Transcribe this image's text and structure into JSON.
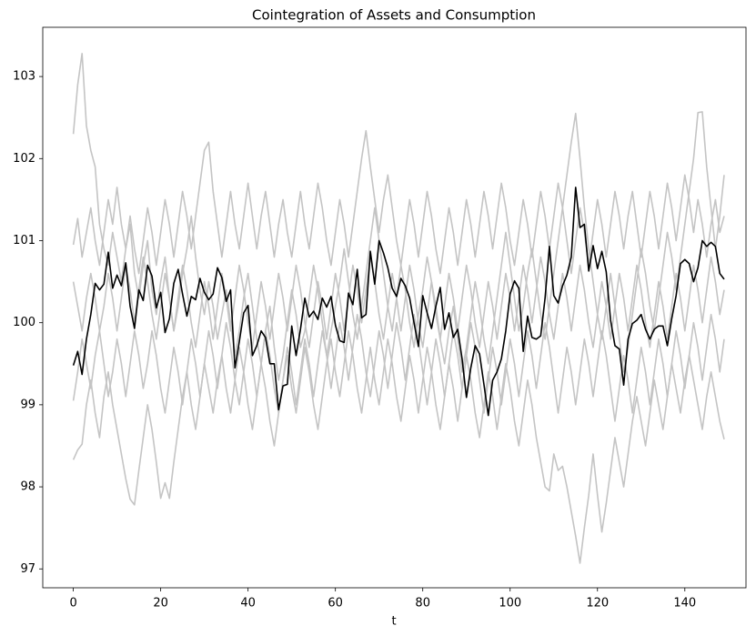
{
  "chart_data": {
    "type": "line",
    "title": "Cointegration of Assets and Consumption",
    "x_label": "t",
    "x": [
      0,
      1,
      2,
      3,
      4,
      5,
      6,
      7,
      8,
      9,
      10,
      11,
      12,
      13,
      14,
      15,
      16,
      17,
      18,
      19,
      20,
      21,
      22,
      23,
      24,
      25,
      26,
      27,
      28,
      29,
      30,
      31,
      32,
      33,
      34,
      35,
      36,
      37,
      38,
      39,
      40,
      41,
      42,
      43,
      44,
      45,
      46,
      47,
      48,
      49,
      50,
      51,
      52,
      53,
      54,
      55,
      56,
      57,
      58,
      59,
      60,
      61,
      62,
      63,
      64,
      65,
      66,
      67,
      68,
      69,
      70,
      71,
      72,
      73,
      74,
      75,
      76,
      77,
      78,
      79,
      80,
      81,
      82,
      83,
      84,
      85,
      86,
      87,
      88,
      89,
      90,
      91,
      92,
      93,
      94,
      95,
      96,
      97,
      98,
      99,
      100,
      101,
      102,
      103,
      104,
      105,
      106,
      107,
      108,
      109,
      110,
      111,
      112,
      113,
      114,
      115,
      116,
      117,
      118,
      119,
      120,
      121,
      122,
      123,
      124,
      125,
      126,
      127,
      128,
      129,
      130,
      131,
      132,
      133,
      134,
      135,
      136,
      137,
      138,
      139,
      140,
      141,
      142,
      143,
      144,
      145,
      146,
      147,
      148,
      149
    ],
    "xlim": [
      -7,
      154
    ],
    "ylim": [
      96.77,
      103.6
    ],
    "xticks": [
      0,
      20,
      40,
      60,
      80,
      100,
      120,
      140
    ],
    "yticks": [
      97,
      98,
      99,
      100,
      101,
      102,
      103
    ],
    "series": [
      {
        "color": "#c4c4c4",
        "values": [
          102.3,
          102.9,
          103.28,
          102.4,
          102.1,
          101.9,
          101.2,
          100.9,
          100.7,
          101.1,
          100.8,
          100.5,
          100.9,
          101.2,
          100.6,
          100.3,
          100.7,
          101.0,
          100.4,
          100.1,
          100.5,
          100.8,
          100.3,
          99.9,
          100.2,
          100.6,
          100.9,
          101.3,
          100.8,
          100.4,
          100.1,
          100.5,
          100.2,
          99.8,
          100.1,
          100.4,
          100.0,
          99.6,
          99.9,
          100.3,
          100.6,
          100.2,
          99.8,
          99.5,
          99.9,
          100.2,
          99.7,
          99.3,
          99.6,
          100.0,
          100.4,
          100.1,
          99.7,
          99.9,
          100.3,
          100.7,
          100.4,
          100.0,
          99.6,
          99.9,
          100.2,
          100.5,
          100.9,
          100.5,
          100.1,
          99.8,
          100.2,
          100.6,
          101.0,
          101.4,
          101.0,
          100.6,
          100.2,
          99.9,
          100.3,
          100.7,
          100.4,
          100.0,
          99.7,
          100.1,
          100.4,
          100.8,
          100.5,
          100.1,
          99.8,
          99.5,
          99.9,
          100.2,
          99.8,
          99.4,
          99.7,
          100.1,
          100.5,
          100.2,
          99.8,
          99.5,
          99.9,
          100.3,
          100.7,
          101.1,
          100.7,
          100.3,
          99.9,
          100.2,
          100.6,
          100.9,
          100.5,
          100.1,
          99.8,
          100.2,
          100.6,
          101.0,
          101.4,
          101.8,
          102.2,
          102.55,
          102.0,
          101.4,
          100.9,
          100.5,
          100.1,
          99.8,
          100.2,
          100.6,
          100.2,
          99.8,
          99.4,
          99.7,
          100.1,
          100.5,
          100.9,
          100.6,
          100.2,
          99.9,
          100.3,
          100.7,
          101.1,
          100.8,
          100.4,
          100.8,
          101.2,
          101.6,
          102.0,
          102.56,
          102.57,
          101.9,
          101.4,
          100.9,
          101.3,
          101.8
        ]
      },
      {
        "color": "#c4c4c4",
        "values": [
          98.33,
          98.45,
          98.52,
          99.0,
          99.3,
          98.9,
          98.6,
          99.1,
          99.4,
          99.0,
          98.7,
          98.4,
          98.1,
          97.85,
          97.78,
          98.2,
          98.6,
          99.0,
          98.7,
          98.3,
          97.86,
          98.05,
          97.86,
          98.3,
          98.7,
          99.1,
          99.4,
          99.0,
          98.7,
          99.1,
          99.5,
          99.2,
          98.9,
          99.3,
          99.6,
          99.2,
          98.9,
          99.3,
          99.7,
          99.4,
          99.0,
          98.7,
          99.1,
          99.5,
          99.2,
          98.8,
          98.5,
          98.9,
          99.3,
          99.6,
          99.2,
          98.9,
          99.3,
          99.7,
          99.4,
          99.0,
          98.7,
          99.1,
          99.5,
          99.8,
          99.4,
          99.1,
          99.5,
          99.9,
          99.6,
          99.2,
          98.9,
          99.3,
          99.7,
          99.3,
          99.0,
          99.4,
          99.8,
          99.5,
          99.1,
          98.8,
          99.2,
          99.6,
          99.3,
          98.9,
          99.3,
          99.7,
          99.4,
          99.0,
          98.7,
          99.1,
          99.5,
          99.2,
          98.8,
          99.2,
          99.6,
          99.3,
          98.9,
          98.6,
          99.0,
          99.4,
          99.1,
          98.7,
          99.1,
          99.5,
          99.2,
          98.8,
          98.5,
          98.9,
          99.3,
          99.0,
          98.6,
          98.3,
          98.0,
          97.95,
          98.4,
          98.2,
          98.25,
          98.0,
          97.7,
          97.4,
          97.07,
          97.5,
          97.9,
          98.4,
          97.9,
          97.45,
          97.8,
          98.2,
          98.6,
          98.3,
          98.0,
          98.4,
          98.8,
          99.1,
          98.8,
          98.5,
          98.9,
          99.3,
          99.0,
          98.7,
          99.1,
          99.5,
          99.2,
          98.9,
          99.3,
          99.6,
          99.3,
          99.0,
          98.7,
          99.1,
          99.4,
          99.1,
          98.8,
          98.58
        ]
      },
      {
        "color": "#c4c4c4",
        "values": [
          100.95,
          101.27,
          100.8,
          101.1,
          101.4,
          101.0,
          100.7,
          101.1,
          101.5,
          101.2,
          101.65,
          101.2,
          100.9,
          101.3,
          100.9,
          100.6,
          101.0,
          101.4,
          101.1,
          100.7,
          101.1,
          101.5,
          101.2,
          100.8,
          101.2,
          101.6,
          101.3,
          100.9,
          101.3,
          101.7,
          102.1,
          102.2,
          101.6,
          101.2,
          100.8,
          101.2,
          101.6,
          101.2,
          100.9,
          101.3,
          101.7,
          101.3,
          100.9,
          101.3,
          101.6,
          101.2,
          100.8,
          101.2,
          101.5,
          101.1,
          100.8,
          101.2,
          101.6,
          101.2,
          100.9,
          101.3,
          101.7,
          101.4,
          101.0,
          100.7,
          101.1,
          101.5,
          101.2,
          100.8,
          101.2,
          101.6,
          102.0,
          102.34,
          101.9,
          101.5,
          101.1,
          101.5,
          101.8,
          101.4,
          101.0,
          100.7,
          101.1,
          101.5,
          101.2,
          100.8,
          101.2,
          101.6,
          101.3,
          100.9,
          100.6,
          101.0,
          101.4,
          101.1,
          100.7,
          101.1,
          101.5,
          101.2,
          100.8,
          101.2,
          101.6,
          101.3,
          100.9,
          101.3,
          101.7,
          101.4,
          101.0,
          100.7,
          101.1,
          101.5,
          101.2,
          100.8,
          101.2,
          101.6,
          101.3,
          100.9,
          101.3,
          101.7,
          101.4,
          101.0,
          100.6,
          101.0,
          101.4,
          101.1,
          100.7,
          101.1,
          101.5,
          101.2,
          100.8,
          101.2,
          101.6,
          101.3,
          100.9,
          101.3,
          101.6,
          101.2,
          100.8,
          101.2,
          101.6,
          101.3,
          100.9,
          101.3,
          101.7,
          101.4,
          101.0,
          101.4,
          101.8,
          101.5,
          101.1,
          101.5,
          101.2,
          100.8,
          101.2,
          101.5,
          101.1,
          101.3
        ]
      },
      {
        "color": "#c4c4c4",
        "values": [
          99.05,
          99.4,
          99.8,
          99.5,
          99.2,
          99.6,
          99.9,
          99.5,
          99.1,
          99.4,
          99.8,
          99.5,
          99.1,
          99.5,
          99.9,
          99.6,
          99.2,
          99.5,
          99.9,
          99.6,
          99.2,
          98.9,
          99.3,
          99.7,
          99.4,
          99.0,
          99.4,
          99.8,
          99.5,
          99.1,
          99.5,
          99.9,
          99.6,
          99.2,
          99.6,
          100.0,
          99.7,
          99.3,
          99.0,
          99.4,
          99.8,
          99.5,
          99.1,
          99.5,
          99.9,
          99.6,
          99.2,
          98.9,
          99.3,
          99.7,
          99.4,
          99.0,
          99.4,
          99.8,
          99.5,
          99.1,
          99.5,
          99.9,
          99.6,
          99.2,
          99.6,
          100.0,
          99.7,
          99.3,
          99.7,
          100.1,
          99.8,
          99.4,
          99.1,
          99.5,
          99.9,
          99.6,
          99.2,
          99.6,
          100.0,
          99.7,
          99.3,
          99.7,
          100.1,
          99.8,
          99.4,
          99.0,
          99.4,
          99.8,
          99.5,
          99.1,
          99.5,
          99.9,
          99.6,
          99.2,
          99.6,
          100.0,
          99.7,
          99.3,
          98.9,
          99.3,
          99.7,
          99.4,
          99.0,
          99.4,
          99.8,
          99.5,
          99.1,
          99.5,
          99.9,
          99.6,
          99.2,
          99.6,
          100.0,
          99.7,
          99.3,
          98.9,
          99.3,
          99.7,
          99.4,
          99.0,
          99.4,
          99.8,
          99.5,
          99.1,
          99.5,
          99.9,
          99.6,
          99.2,
          98.8,
          99.2,
          99.6,
          99.3,
          98.9,
          99.3,
          99.7,
          99.4,
          99.0,
          99.4,
          99.8,
          99.5,
          99.1,
          99.5,
          99.9,
          99.6,
          99.2,
          99.6,
          100.0,
          99.7,
          99.3,
          99.7,
          100.1,
          99.8,
          99.4,
          99.8
        ]
      },
      {
        "color": "#c4c4c4",
        "values": [
          100.5,
          100.2,
          99.9,
          100.3,
          100.6,
          100.3,
          99.9,
          100.2,
          100.6,
          100.3,
          99.9,
          100.3,
          100.7,
          100.4,
          100.0,
          100.4,
          100.8,
          100.5,
          100.1,
          99.8,
          100.2,
          100.6,
          100.3,
          99.9,
          100.3,
          100.7,
          100.4,
          100.0,
          99.7,
          100.1,
          100.5,
          100.2,
          99.8,
          100.2,
          100.6,
          100.3,
          99.9,
          100.3,
          100.7,
          100.4,
          100.0,
          99.7,
          100.1,
          100.5,
          100.2,
          99.8,
          100.2,
          100.6,
          100.3,
          99.9,
          100.3,
          100.7,
          100.4,
          100.0,
          99.7,
          100.1,
          100.5,
          100.2,
          99.8,
          100.2,
          100.6,
          100.3,
          99.9,
          100.3,
          100.7,
          100.4,
          100.0,
          100.4,
          100.8,
          100.5,
          100.1,
          99.8,
          100.2,
          100.6,
          100.3,
          99.9,
          100.3,
          100.7,
          100.4,
          100.0,
          99.7,
          100.1,
          100.5,
          100.2,
          99.8,
          100.2,
          100.6,
          100.3,
          99.9,
          100.3,
          100.7,
          100.4,
          100.0,
          99.7,
          100.1,
          100.5,
          100.2,
          99.8,
          100.2,
          100.6,
          100.3,
          99.9,
          100.3,
          100.7,
          100.4,
          100.0,
          100.4,
          100.8,
          100.5,
          100.1,
          99.8,
          100.2,
          100.6,
          100.3,
          99.9,
          100.3,
          100.7,
          100.4,
          100.0,
          99.7,
          100.1,
          100.5,
          100.2,
          99.8,
          100.2,
          100.6,
          100.3,
          99.9,
          100.3,
          100.7,
          100.4,
          100.0,
          99.7,
          100.1,
          100.5,
          100.2,
          99.8,
          100.2,
          100.6,
          100.3,
          99.9,
          100.3,
          100.7,
          100.4,
          100.0,
          100.4,
          100.8,
          100.5,
          100.1,
          100.4
        ]
      },
      {
        "color": "#000000",
        "values": [
          99.48,
          99.65,
          99.37,
          99.8,
          100.1,
          100.48,
          100.4,
          100.47,
          100.86,
          100.42,
          100.58,
          100.45,
          100.73,
          100.2,
          99.93,
          100.4,
          100.27,
          100.7,
          100.57,
          100.18,
          100.37,
          99.88,
          100.05,
          100.48,
          100.65,
          100.35,
          100.08,
          100.32,
          100.28,
          100.54,
          100.37,
          100.28,
          100.35,
          100.67,
          100.55,
          100.26,
          100.4,
          99.45,
          99.77,
          100.12,
          100.21,
          99.6,
          99.72,
          99.9,
          99.82,
          99.5,
          99.5,
          98.94,
          99.23,
          99.25,
          99.96,
          99.6,
          99.92,
          100.3,
          100.07,
          100.14,
          100.04,
          100.3,
          100.19,
          100.32,
          99.97,
          99.78,
          99.76,
          100.36,
          100.22,
          100.65,
          100.06,
          100.1,
          100.87,
          100.47,
          101.0,
          100.85,
          100.67,
          100.42,
          100.32,
          100.54,
          100.45,
          100.3,
          100.0,
          99.71,
          100.33,
          100.12,
          99.93,
          100.2,
          100.43,
          99.92,
          100.12,
          99.82,
          99.92,
          99.56,
          99.09,
          99.45,
          99.72,
          99.62,
          99.25,
          98.87,
          99.3,
          99.4,
          99.56,
          99.9,
          100.35,
          100.51,
          100.42,
          99.65,
          100.08,
          99.82,
          99.8,
          99.84,
          100.3,
          100.93,
          100.33,
          100.24,
          100.45,
          100.58,
          100.8,
          101.65,
          101.16,
          101.2,
          100.63,
          100.94,
          100.66,
          100.87,
          100.62,
          100.03,
          99.72,
          99.68,
          99.24,
          99.8,
          99.99,
          100.03,
          100.1,
          99.92,
          99.8,
          99.92,
          99.96,
          99.96,
          99.72,
          100.05,
          100.33,
          100.72,
          100.77,
          100.72,
          100.5,
          100.67,
          101.0,
          100.93,
          100.98,
          100.93,
          100.6,
          100.53
        ]
      }
    ]
  }
}
